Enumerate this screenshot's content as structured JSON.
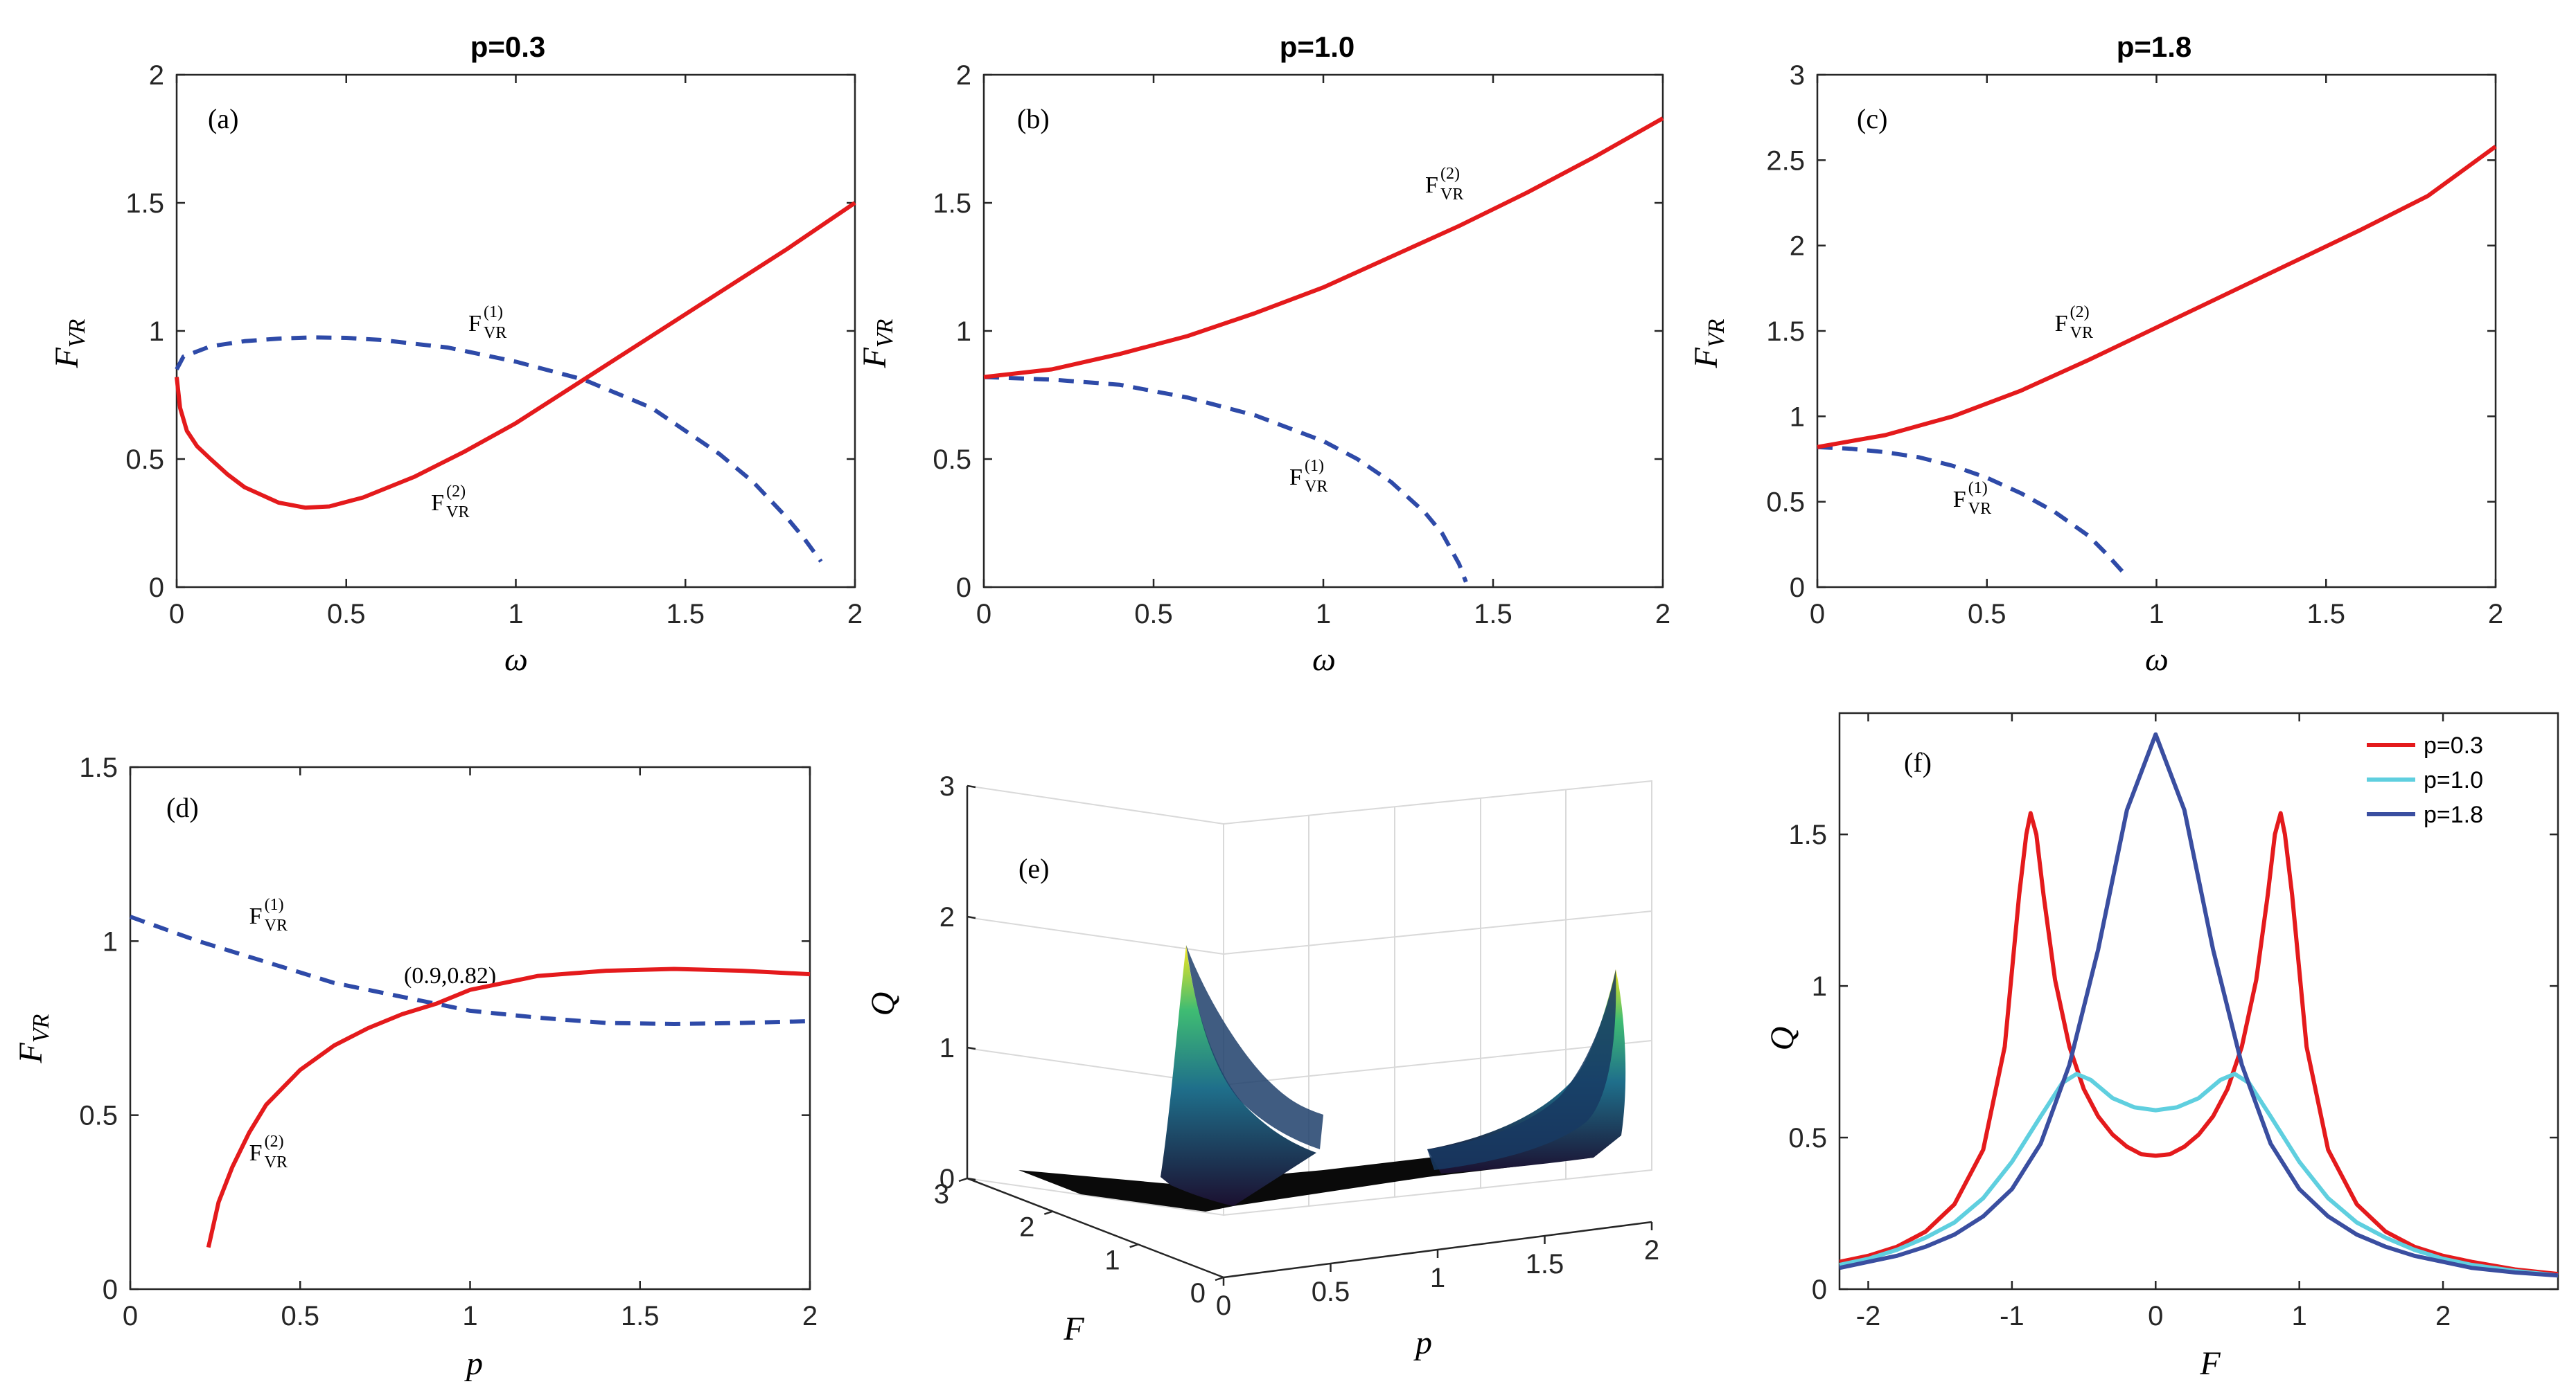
{
  "colors": {
    "red": "#e41a1c",
    "blue": "#2e4aa8",
    "cyan": "#5fcfdf",
    "navy": "#3a4ea0",
    "axis": "#262626"
  },
  "chart_data": [
    {
      "id": "a",
      "type": "line",
      "title": "p=0.3",
      "panel_label": "(a)",
      "xlabel": "ω",
      "ylabel_main": "F",
      "ylabel_sub": "VR",
      "xlim": [
        0,
        2
      ],
      "ylim": [
        0,
        2
      ],
      "xticks": [
        0,
        0.5,
        1,
        1.5,
        2
      ],
      "xtick_labels": [
        "0",
        "0.5",
        "1",
        "1.5",
        "2"
      ],
      "yticks": [
        0,
        0.5,
        1,
        1.5,
        2
      ],
      "ytick_labels": [
        "0",
        "0.5",
        "1",
        "1.5",
        "2"
      ],
      "series": [
        {
          "key": "F1",
          "style": "dashed",
          "color": "blue",
          "x": [
            0,
            0.02,
            0.1,
            0.2,
            0.3,
            0.4,
            0.5,
            0.6,
            0.8,
            1.0,
            1.2,
            1.4,
            1.6,
            1.7,
            1.8,
            1.85,
            1.9
          ],
          "y": [
            0.85,
            0.9,
            0.94,
            0.96,
            0.97,
            0.975,
            0.973,
            0.965,
            0.935,
            0.88,
            0.81,
            0.7,
            0.52,
            0.41,
            0.27,
            0.19,
            0.1
          ]
        },
        {
          "key": "F2",
          "style": "solid",
          "color": "red",
          "x": [
            0,
            0.01,
            0.03,
            0.06,
            0.1,
            0.15,
            0.2,
            0.3,
            0.38,
            0.45,
            0.55,
            0.7,
            0.85,
            1.0,
            1.2,
            1.4,
            1.6,
            1.8,
            2.0
          ],
          "y": [
            0.82,
            0.7,
            0.61,
            0.55,
            0.5,
            0.44,
            0.39,
            0.33,
            0.31,
            0.315,
            0.35,
            0.43,
            0.53,
            0.64,
            0.81,
            0.98,
            1.15,
            1.32,
            1.5
          ]
        }
      ],
      "annotations": [
        {
          "base": "F",
          "sup": "(1)",
          "sub": "VR",
          "x": 0.86,
          "y": 1.0
        },
        {
          "base": "F",
          "sup": "(2)",
          "sub": "VR",
          "x": 0.75,
          "y": 0.3
        }
      ]
    },
    {
      "id": "b",
      "type": "line",
      "title": "p=1.0",
      "panel_label": "(b)",
      "xlabel": "ω",
      "ylabel_main": "F",
      "ylabel_sub": "VR",
      "xlim": [
        0,
        2
      ],
      "ylim": [
        0,
        2
      ],
      "xticks": [
        0,
        0.5,
        1,
        1.5,
        2
      ],
      "xtick_labels": [
        "0",
        "0.5",
        "1",
        "1.5",
        "2"
      ],
      "yticks": [
        0,
        0.5,
        1,
        1.5,
        2
      ],
      "ytick_labels": [
        "0",
        "0.5",
        "1",
        "1.5",
        "2"
      ],
      "series": [
        {
          "key": "F1",
          "style": "dashed",
          "color": "blue",
          "x": [
            0,
            0.2,
            0.4,
            0.6,
            0.8,
            1.0,
            1.1,
            1.2,
            1.3,
            1.35,
            1.4,
            1.42
          ],
          "y": [
            0.82,
            0.81,
            0.79,
            0.74,
            0.67,
            0.57,
            0.5,
            0.41,
            0.29,
            0.21,
            0.09,
            0.02
          ]
        },
        {
          "key": "F2",
          "style": "solid",
          "color": "red",
          "x": [
            0,
            0.2,
            0.4,
            0.6,
            0.8,
            1.0,
            1.2,
            1.4,
            1.6,
            1.8,
            2.0
          ],
          "y": [
            0.82,
            0.85,
            0.91,
            0.98,
            1.07,
            1.17,
            1.29,
            1.41,
            1.54,
            1.68,
            1.83
          ]
        }
      ],
      "annotations": [
        {
          "base": "F",
          "sup": "(2)",
          "sub": "VR",
          "x": 1.3,
          "y": 1.54
        },
        {
          "base": "F",
          "sup": "(1)",
          "sub": "VR",
          "x": 0.9,
          "y": 0.4
        }
      ]
    },
    {
      "id": "c",
      "type": "line",
      "title": "p=1.8",
      "panel_label": "(c)",
      "xlabel": "ω",
      "ylabel_main": "F",
      "ylabel_sub": "VR",
      "xlim": [
        0,
        2
      ],
      "ylim": [
        0,
        3
      ],
      "xticks": [
        0,
        0.5,
        1,
        1.5,
        2
      ],
      "xtick_labels": [
        "0",
        "0.5",
        "1",
        "1.5",
        "2"
      ],
      "yticks": [
        0,
        0.5,
        1,
        1.5,
        2,
        2.5,
        3
      ],
      "ytick_labels": [
        "0",
        "0.5",
        "1",
        "1.5",
        "2",
        "2.5",
        "3"
      ],
      "series": [
        {
          "key": "F1",
          "style": "dashed",
          "color": "blue",
          "x": [
            0,
            0.1,
            0.2,
            0.3,
            0.4,
            0.5,
            0.6,
            0.7,
            0.8,
            0.85,
            0.9
          ],
          "y": [
            0.82,
            0.81,
            0.79,
            0.76,
            0.71,
            0.64,
            0.55,
            0.44,
            0.3,
            0.2,
            0.09
          ]
        },
        {
          "key": "F2",
          "style": "solid",
          "color": "red",
          "x": [
            0,
            0.2,
            0.4,
            0.6,
            0.8,
            1.0,
            1.2,
            1.4,
            1.6,
            1.8,
            2.0
          ],
          "y": [
            0.82,
            0.89,
            1.0,
            1.15,
            1.33,
            1.52,
            1.71,
            1.9,
            2.09,
            2.29,
            2.58
          ]
        }
      ],
      "annotations": [
        {
          "base": "F",
          "sup": "(2)",
          "sub": "VR",
          "x": 0.7,
          "y": 1.5
        },
        {
          "base": "F",
          "sup": "(1)",
          "sub": "VR",
          "x": 0.4,
          "y": 0.47
        }
      ]
    },
    {
      "id": "d",
      "type": "line",
      "title": "",
      "panel_label": "(d)",
      "xlabel": "p",
      "ylabel_main": "F",
      "ylabel_sub": "VR",
      "xlim": [
        0,
        2
      ],
      "ylim": [
        0,
        1.5
      ],
      "xticks": [
        0,
        0.5,
        1,
        1.5,
        2
      ],
      "xtick_labels": [
        "0",
        "0.5",
        "1",
        "1.5",
        "2"
      ],
      "yticks": [
        0,
        0.5,
        1,
        1.5
      ],
      "ytick_labels": [
        "0",
        "0.5",
        "1",
        "1.5"
      ],
      "series": [
        {
          "key": "F1",
          "style": "dashed",
          "color": "blue",
          "x": [
            0,
            0.2,
            0.4,
            0.6,
            0.8,
            0.9,
            1.0,
            1.2,
            1.4,
            1.6,
            1.8,
            2.0
          ],
          "y": [
            1.07,
            1.0,
            0.94,
            0.88,
            0.84,
            0.82,
            0.8,
            0.78,
            0.765,
            0.762,
            0.765,
            0.77
          ]
        },
        {
          "key": "F2",
          "style": "solid",
          "color": "red",
          "x": [
            0.23,
            0.26,
            0.3,
            0.35,
            0.4,
            0.5,
            0.6,
            0.7,
            0.8,
            0.9,
            1.0,
            1.2,
            1.4,
            1.6,
            1.8,
            2.0
          ],
          "y": [
            0.12,
            0.25,
            0.35,
            0.45,
            0.53,
            0.63,
            0.7,
            0.75,
            0.79,
            0.82,
            0.86,
            0.9,
            0.915,
            0.92,
            0.915,
            0.905
          ]
        }
      ],
      "annotations": [
        {
          "base": "F",
          "sup": "(1)",
          "sub": "VR",
          "x": 0.35,
          "y": 1.05
        },
        {
          "base": "F",
          "sup": "(2)",
          "sub": "VR",
          "x": 0.35,
          "y": 0.37
        }
      ],
      "point_label": {
        "text": "(0.9,0.82)",
        "x": 0.81,
        "y": 0.86
      }
    },
    {
      "id": "e",
      "type": "surface",
      "title": "",
      "panel_label": "(e)",
      "xlabel": "p",
      "ylabel": "F",
      "zlabel": "Q",
      "xticks": [
        0,
        0.5,
        1,
        1.5,
        2
      ],
      "xtick_labels": [
        "0",
        "0.5",
        "1",
        "1.5",
        "2"
      ],
      "yticks": [
        0,
        1,
        2,
        3
      ],
      "ytick_labels": [
        "0",
        "1",
        "2",
        "3"
      ],
      "zticks": [
        0,
        1,
        2,
        3
      ],
      "ztick_labels": [
        "0",
        "1",
        "2",
        "3"
      ],
      "zlim": [
        0,
        3
      ]
    },
    {
      "id": "f",
      "type": "line",
      "title": "",
      "panel_label": "(f)",
      "xlabel": "F",
      "ylabel": "Q",
      "xlim": [
        -2.2,
        2.8
      ],
      "ylim": [
        0,
        1.9
      ],
      "xticks": [
        -2,
        -1,
        0,
        1,
        2
      ],
      "xtick_labels": [
        "-2",
        "-1",
        "0",
        "1",
        "2"
      ],
      "yticks": [
        0,
        0.5,
        1,
        1.5
      ],
      "ytick_labels": [
        "0",
        "0.5",
        "1",
        "1.5"
      ],
      "legend_position": "top-right",
      "series": [
        {
          "name": "p=0.3",
          "color": "red",
          "x": [
            -2.2,
            -2.0,
            -1.8,
            -1.6,
            -1.4,
            -1.2,
            -1.05,
            -0.95,
            -0.9,
            -0.87,
            -0.83,
            -0.78,
            -0.7,
            -0.6,
            -0.5,
            -0.4,
            -0.3,
            -0.2,
            -0.1,
            0,
            0.1,
            0.2,
            0.3,
            0.4,
            0.5,
            0.6,
            0.7,
            0.78,
            0.83,
            0.87,
            0.9,
            0.95,
            1.05,
            1.2,
            1.4,
            1.6,
            1.8,
            2.0,
            2.2,
            2.5,
            2.8
          ],
          "y": [
            0.09,
            0.11,
            0.14,
            0.19,
            0.28,
            0.46,
            0.8,
            1.3,
            1.5,
            1.57,
            1.5,
            1.3,
            1.02,
            0.8,
            0.66,
            0.57,
            0.51,
            0.47,
            0.445,
            0.44,
            0.445,
            0.47,
            0.51,
            0.57,
            0.66,
            0.8,
            1.02,
            1.3,
            1.5,
            1.57,
            1.5,
            1.3,
            0.8,
            0.46,
            0.28,
            0.19,
            0.14,
            0.11,
            0.09,
            0.065,
            0.05
          ]
        },
        {
          "name": "p=1.0",
          "color": "cyan",
          "x": [
            -2.2,
            -2.0,
            -1.8,
            -1.6,
            -1.4,
            -1.2,
            -1.0,
            -0.8,
            -0.65,
            -0.55,
            -0.45,
            -0.3,
            -0.15,
            0,
            0.15,
            0.3,
            0.45,
            0.55,
            0.65,
            0.8,
            1.0,
            1.2,
            1.4,
            1.6,
            1.8,
            2.0,
            2.2,
            2.5,
            2.8
          ],
          "y": [
            0.08,
            0.1,
            0.13,
            0.17,
            0.22,
            0.3,
            0.42,
            0.57,
            0.68,
            0.71,
            0.69,
            0.63,
            0.6,
            0.59,
            0.6,
            0.63,
            0.69,
            0.71,
            0.68,
            0.57,
            0.42,
            0.3,
            0.22,
            0.17,
            0.13,
            0.1,
            0.08,
            0.06,
            0.045
          ]
        },
        {
          "name": "p=1.8",
          "color": "navy",
          "x": [
            -2.2,
            -2.0,
            -1.8,
            -1.6,
            -1.4,
            -1.2,
            -1.0,
            -0.8,
            -0.6,
            -0.4,
            -0.2,
            0,
            0.2,
            0.4,
            0.6,
            0.8,
            1.0,
            1.2,
            1.4,
            1.6,
            1.8,
            2.0,
            2.2,
            2.5,
            2.8
          ],
          "y": [
            0.07,
            0.09,
            0.11,
            0.14,
            0.18,
            0.24,
            0.33,
            0.48,
            0.74,
            1.12,
            1.58,
            1.83,
            1.58,
            1.12,
            0.74,
            0.48,
            0.33,
            0.24,
            0.18,
            0.14,
            0.11,
            0.09,
            0.07,
            0.055,
            0.045
          ]
        }
      ]
    }
  ]
}
